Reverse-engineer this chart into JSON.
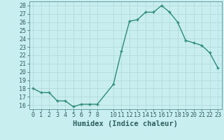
{
  "x": [
    0,
    1,
    2,
    3,
    4,
    5,
    6,
    7,
    8,
    10,
    11,
    12,
    13,
    14,
    15,
    16,
    17,
    18,
    19,
    20,
    21,
    22,
    23
  ],
  "y": [
    18,
    17.5,
    17.5,
    16.5,
    16.5,
    15.8,
    16.1,
    16.1,
    16.1,
    18.5,
    22.5,
    26.1,
    26.3,
    27.2,
    27.2,
    28.0,
    27.2,
    26.0,
    23.8,
    23.5,
    23.2,
    22.3,
    20.5
  ],
  "line_color": "#2e8b7a",
  "marker_color": "#2e8b7a",
  "bg_color": "#c8eef0",
  "grid_color": "#b0d8d8",
  "xlabel": "Humidex (Indice chaleur)",
  "ylim": [
    15.5,
    28.5
  ],
  "yticks": [
    16,
    17,
    18,
    19,
    20,
    21,
    22,
    23,
    24,
    25,
    26,
    27,
    28
  ],
  "xticks": [
    0,
    1,
    2,
    3,
    4,
    5,
    6,
    7,
    8,
    10,
    11,
    12,
    13,
    14,
    15,
    16,
    17,
    18,
    19,
    20,
    21,
    22,
    23
  ],
  "xlim": [
    -0.5,
    23.5
  ],
  "tick_label_color": "#2e6060",
  "axis_color": "#5a9090",
  "xlabel_fontsize": 7.5,
  "tick_fontsize": 6,
  "line_width": 1.0,
  "marker_size": 3.5
}
